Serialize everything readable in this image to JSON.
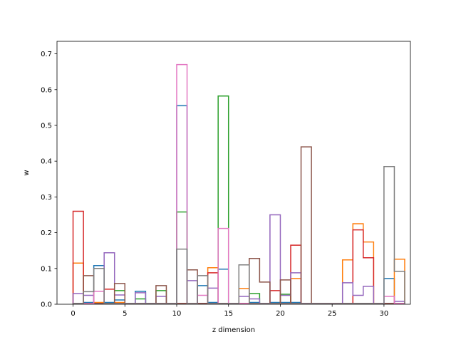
{
  "chart_data": {
    "type": "line",
    "title": "",
    "xlabel": "z dimension",
    "ylabel": "w",
    "xlim": [
      -1.55,
      32.55
    ],
    "ylim": [
      0,
      0.735
    ],
    "xticks": [
      0,
      5,
      10,
      15,
      20,
      25,
      30
    ],
    "yticks": [
      0.0,
      0.1,
      0.2,
      0.3,
      0.4,
      0.5,
      0.6,
      0.7
    ],
    "grid": false,
    "style": "step-histogram",
    "series": [
      {
        "color": "#1f77b4",
        "values": [
          0.002,
          0.005,
          0.108,
          0.005,
          0.012,
          0.002,
          0.036,
          0.002,
          0.002,
          0.002,
          0.555,
          0.002,
          0.052,
          0.005,
          0.098,
          0.002,
          0.002,
          0.005,
          0.002,
          0.005,
          0.005,
          0.005,
          0.002,
          0.002,
          0.002,
          0.002,
          0.002,
          0.002,
          0.002,
          0.002,
          0.072,
          0.002
        ]
      },
      {
        "color": "#ff7f0e",
        "values": [
          0.115,
          0.002,
          0.005,
          0.002,
          0.005,
          0.002,
          0.002,
          0.002,
          0.002,
          0.002,
          0.002,
          0.002,
          0.002,
          0.102,
          0.002,
          0.002,
          0.044,
          0.002,
          0.002,
          0.002,
          0.002,
          0.072,
          0.002,
          0.002,
          0.002,
          0.002,
          0.124,
          0.225,
          0.174,
          0.002,
          0.002,
          0.126
        ]
      },
      {
        "color": "#2ca02c",
        "values": [
          0.002,
          0.002,
          0.002,
          0.002,
          0.038,
          0.002,
          0.015,
          0.002,
          0.038,
          0.002,
          0.258,
          0.002,
          0.002,
          0.002,
          0.582,
          0.002,
          0.002,
          0.03,
          0.002,
          0.002,
          0.028,
          0.002,
          0.002,
          0.002,
          0.002,
          0.002,
          0.002,
          0.002,
          0.002,
          0.002,
          0.002,
          0.002
        ]
      },
      {
        "color": "#d62728",
        "values": [
          0.26,
          0.002,
          0.002,
          0.042,
          0.002,
          0.002,
          0.002,
          0.002,
          0.002,
          0.002,
          0.002,
          0.002,
          0.002,
          0.088,
          0.002,
          0.002,
          0.002,
          0.002,
          0.002,
          0.038,
          0.002,
          0.165,
          0.002,
          0.002,
          0.002,
          0.002,
          0.002,
          0.208,
          0.13,
          0.002,
          0.002,
          0.002
        ]
      },
      {
        "color": "#9467bd",
        "values": [
          0.03,
          0.025,
          0.002,
          0.144,
          0.026,
          0.002,
          0.032,
          0.002,
          0.022,
          0.002,
          0.002,
          0.066,
          0.002,
          0.045,
          0.002,
          0.002,
          0.022,
          0.015,
          0.002,
          0.25,
          0.025,
          0.088,
          0.002,
          0.002,
          0.002,
          0.002,
          0.06,
          0.025,
          0.05,
          0.002,
          0.002,
          0.008
        ]
      },
      {
        "color": "#8c564b",
        "values": [
          0.002,
          0.08,
          0.002,
          0.002,
          0.058,
          0.002,
          0.002,
          0.002,
          0.052,
          0.002,
          0.002,
          0.096,
          0.002,
          0.002,
          0.002,
          0.002,
          0.002,
          0.128,
          0.062,
          0.002,
          0.068,
          0.002,
          0.44,
          0.002,
          0.002,
          0.002,
          0.002,
          0.002,
          0.002,
          0.002,
          0.002,
          0.002
        ]
      },
      {
        "color": "#e377c2",
        "values": [
          0.002,
          0.002,
          0.036,
          0.002,
          0.002,
          0.002,
          0.002,
          0.002,
          0.002,
          0.002,
          0.67,
          0.002,
          0.025,
          0.002,
          0.212,
          0.002,
          0.002,
          0.002,
          0.002,
          0.002,
          0.002,
          0.002,
          0.002,
          0.002,
          0.002,
          0.002,
          0.002,
          0.002,
          0.002,
          0.002,
          0.022,
          0.002
        ]
      },
      {
        "color": "#7f7f7f",
        "values": [
          0.002,
          0.035,
          0.1,
          0.002,
          0.002,
          0.002,
          0.002,
          0.002,
          0.002,
          0.002,
          0.154,
          0.002,
          0.08,
          0.002,
          0.002,
          0.002,
          0.11,
          0.002,
          0.002,
          0.002,
          0.002,
          0.002,
          0.002,
          0.002,
          0.002,
          0.002,
          0.002,
          0.002,
          0.002,
          0.002,
          0.385,
          0.092
        ]
      }
    ]
  }
}
